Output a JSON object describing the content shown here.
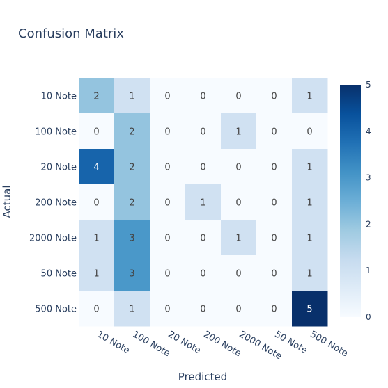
{
  "chart_data": {
    "type": "heatmap",
    "title": "Confusion Matrix",
    "xlabel": "Predicted",
    "ylabel": "Actual",
    "x_categories": [
      "10 Note",
      "100 Note",
      "20 Note",
      "200 Note",
      "2000 Note",
      "50 Note",
      "500 Note"
    ],
    "y_categories": [
      "10 Note",
      "100 Note",
      "20 Note",
      "200 Note",
      "2000 Note",
      "50 Note",
      "500 Note"
    ],
    "z": [
      [
        2,
        1,
        0,
        0,
        0,
        0,
        1
      ],
      [
        0,
        2,
        0,
        0,
        1,
        0,
        0
      ],
      [
        4,
        2,
        0,
        0,
        0,
        0,
        1
      ],
      [
        0,
        2,
        0,
        1,
        0,
        0,
        1
      ],
      [
        1,
        3,
        0,
        0,
        1,
        0,
        1
      ],
      [
        1,
        3,
        0,
        0,
        0,
        0,
        1
      ],
      [
        0,
        1,
        0,
        0,
        0,
        0,
        5
      ]
    ],
    "colorscale": "Blues",
    "zmin": 0,
    "zmax": 5,
    "colorbar_ticks": [
      "0",
      "1",
      "2",
      "3",
      "4",
      "5"
    ]
  }
}
